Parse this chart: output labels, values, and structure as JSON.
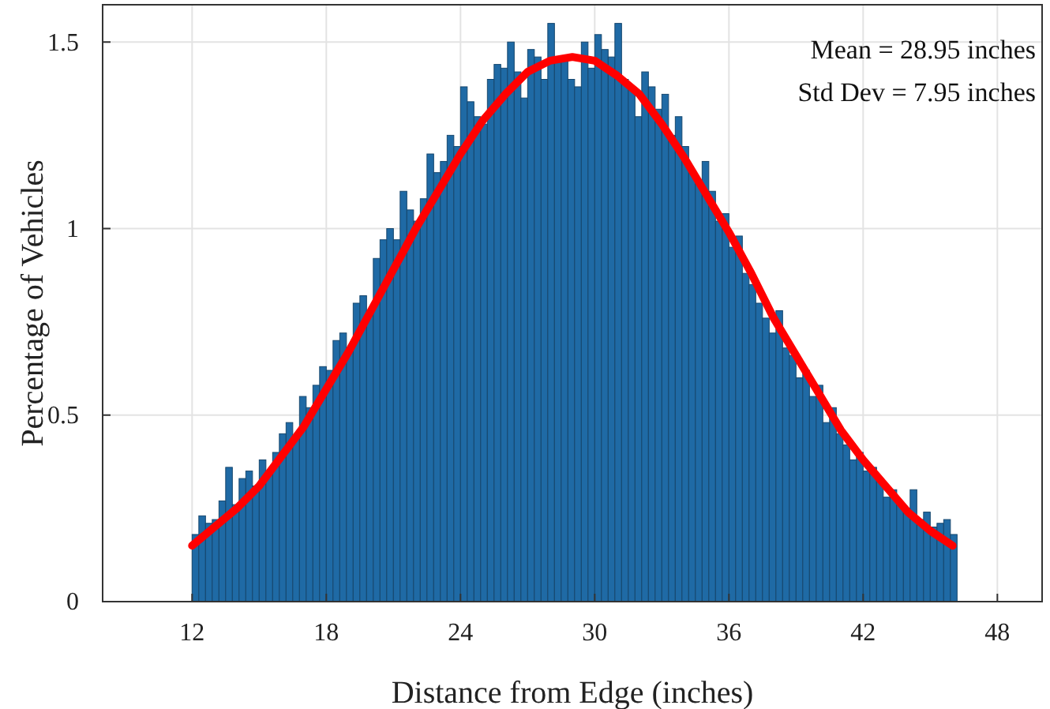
{
  "chart_data": {
    "type": "histogram",
    "xlabel": "Distance from Edge (inches)",
    "ylabel": "Percentage of Vehicles",
    "annotations": [
      "Mean = 28.95 inches",
      "Std Dev = 7.95 inches"
    ],
    "bins": [
      12,
      12.3,
      12.6,
      12.9,
      13.2,
      13.5,
      13.8,
      14.1,
      14.4,
      14.7,
      15,
      15.3,
      15.6,
      15.9,
      16.2,
      16.5,
      16.8,
      17.1,
      17.4,
      17.7,
      18,
      18.3,
      18.6,
      18.9,
      19.2,
      19.5,
      19.8,
      20.1,
      20.4,
      20.7,
      21,
      21.3,
      21.6,
      21.9,
      22.2,
      22.5,
      22.8,
      23.1,
      23.4,
      23.7,
      24,
      24.3,
      24.6,
      24.9,
      25.2,
      25.5,
      25.8,
      26.1,
      26.4,
      26.7,
      27,
      27.3,
      27.6,
      27.9,
      28.2,
      28.5,
      28.8,
      29.1,
      29.4,
      29.7,
      30,
      30.3,
      30.6,
      30.9,
      31.2,
      31.5,
      31.8,
      32.1,
      32.4,
      32.7,
      33,
      33.3,
      33.6,
      33.9,
      34.2,
      34.5,
      34.8,
      35.1,
      35.4,
      35.7,
      36,
      36.3,
      36.6,
      36.9,
      37.2,
      37.5,
      37.8,
      38.1,
      38.4,
      38.7,
      39,
      39.3,
      39.6,
      39.9,
      40.2,
      40.5,
      40.8,
      41.1,
      41.4,
      41.7,
      42,
      42.3,
      42.6,
      42.9,
      43.2,
      43.5,
      43.8,
      44.1,
      44.4,
      44.7,
      45,
      45.3,
      45.6,
      45.9,
      46.2
    ],
    "values": [
      0.18,
      0.23,
      0.21,
      0.22,
      0.27,
      0.36,
      0.26,
      0.33,
      0.35,
      0.31,
      0.38,
      0.35,
      0.4,
      0.45,
      0.48,
      0.44,
      0.55,
      0.52,
      0.58,
      0.63,
      0.62,
      0.7,
      0.72,
      0.68,
      0.8,
      0.82,
      0.78,
      0.92,
      0.97,
      1.0,
      0.97,
      1.1,
      1.05,
      1.02,
      1.08,
      1.2,
      1.15,
      1.18,
      1.25,
      1.22,
      1.38,
      1.34,
      1.3,
      1.28,
      1.4,
      1.44,
      1.43,
      1.5,
      1.42,
      1.35,
      1.48,
      1.46,
      1.4,
      1.55,
      1.45,
      1.46,
      1.4,
      1.38,
      1.5,
      1.43,
      1.52,
      1.48,
      1.46,
      1.55,
      1.4,
      1.38,
      1.3,
      1.42,
      1.38,
      1.32,
      1.36,
      1.25,
      1.3,
      1.22,
      1.15,
      1.12,
      1.18,
      1.1,
      1.02,
      1.04,
      0.95,
      0.98,
      0.88,
      0.85,
      0.8,
      0.76,
      0.72,
      0.78,
      0.68,
      0.66,
      0.6,
      0.62,
      0.55,
      0.58,
      0.48,
      0.52,
      0.45,
      0.42,
      0.38,
      0.4,
      0.35,
      0.36,
      0.33,
      0.28,
      0.3,
      0.26,
      0.25,
      0.3,
      0.22,
      0.24,
      0.2,
      0.21,
      0.22,
      0.18
    ],
    "color": "#1f6aa5",
    "series": [
      {
        "type": "line",
        "color": "#ff0000",
        "x": [
          12,
          13,
          14,
          15,
          16,
          17,
          18,
          19,
          20,
          21,
          22,
          23,
          24,
          25,
          26,
          27,
          28,
          29,
          30,
          31,
          32,
          33,
          34,
          35,
          36,
          37,
          38,
          39,
          40,
          41,
          42,
          43,
          44,
          45,
          46
        ],
        "values": [
          0.15,
          0.2,
          0.25,
          0.31,
          0.39,
          0.47,
          0.57,
          0.67,
          0.78,
          0.89,
          1.0,
          1.1,
          1.2,
          1.29,
          1.36,
          1.42,
          1.45,
          1.46,
          1.45,
          1.41,
          1.36,
          1.28,
          1.19,
          1.09,
          0.99,
          0.88,
          0.76,
          0.66,
          0.56,
          0.46,
          0.38,
          0.31,
          0.24,
          0.19,
          0.15
        ]
      }
    ],
    "xlim": [
      8,
      50
    ],
    "ylim": [
      0,
      1.6
    ],
    "xticks": [
      12,
      18,
      24,
      30,
      36,
      42,
      48
    ],
    "yticks": [
      0,
      0.5,
      1,
      1.5
    ],
    "grid": true,
    "line_style": "solid",
    "marker": "none"
  }
}
